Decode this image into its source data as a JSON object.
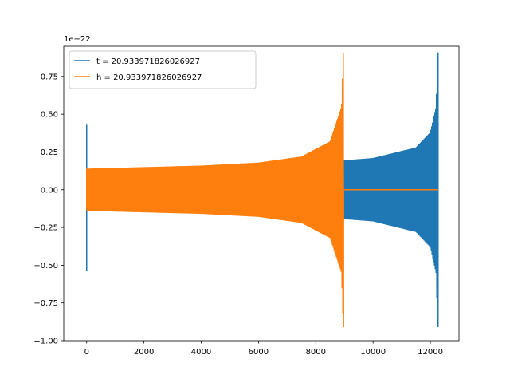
{
  "chart_data": {
    "type": "line",
    "title": "",
    "xlabel": "",
    "ylabel": "",
    "offset_text": "1e−22",
    "xlim": [
      -800,
      13000
    ],
    "ylim": [
      -1.0,
      0.95
    ],
    "x_ticks": [
      {
        "value": 0,
        "label": "0"
      },
      {
        "value": 2000,
        "label": "2000"
      },
      {
        "value": 4000,
        "label": "4000"
      },
      {
        "value": 6000,
        "label": "6000"
      },
      {
        "value": 8000,
        "label": "8000"
      },
      {
        "value": 10000,
        "label": "10000"
      },
      {
        "value": 12000,
        "label": "12000"
      }
    ],
    "y_ticks": [
      {
        "value": 0.75,
        "label": "0.75"
      },
      {
        "value": 0.5,
        "label": "0.50"
      },
      {
        "value": 0.25,
        "label": "0.25"
      },
      {
        "value": 0.0,
        "label": "0.00"
      },
      {
        "value": -0.25,
        "label": "−0.25"
      },
      {
        "value": -0.5,
        "label": "−0.50"
      },
      {
        "value": -0.75,
        "label": "−0.75"
      },
      {
        "value": -1.0,
        "label": "−1.00"
      }
    ],
    "grid": false,
    "legend_position": "top-left",
    "series": [
      {
        "name": "t = 20.933971826026927",
        "color": "#1f77b4",
        "spike_x": 0,
        "spike_max": 0.43,
        "spike_min": -0.54,
        "envelope": [
          {
            "x": 0,
            "y": 0.13
          },
          {
            "x": 4000,
            "y": 0.15
          },
          {
            "x": 8000,
            "y": 0.18
          },
          {
            "x": 10000,
            "y": 0.21
          },
          {
            "x": 11500,
            "y": 0.28
          },
          {
            "x": 12000,
            "y": 0.38
          },
          {
            "x": 12200,
            "y": 0.55
          },
          {
            "x": 12260,
            "y": 0.91
          }
        ],
        "envelope_min_peak": -0.91,
        "end_x": 12270,
        "tail_end_x": 12270
      },
      {
        "name": "h = 20.933971826026927",
        "color": "#ff7f0e",
        "spike_x": 0,
        "spike_max": 0.13,
        "spike_min": -0.13,
        "envelope": [
          {
            "x": 0,
            "y": 0.14
          },
          {
            "x": 2000,
            "y": 0.15
          },
          {
            "x": 4000,
            "y": 0.16
          },
          {
            "x": 6000,
            "y": 0.18
          },
          {
            "x": 7500,
            "y": 0.22
          },
          {
            "x": 8500,
            "y": 0.32
          },
          {
            "x": 8900,
            "y": 0.55
          },
          {
            "x": 8960,
            "y": 0.91
          }
        ],
        "envelope_min_peak": -0.91,
        "end_x": 8970,
        "tail_end_x": 12270
      }
    ]
  }
}
